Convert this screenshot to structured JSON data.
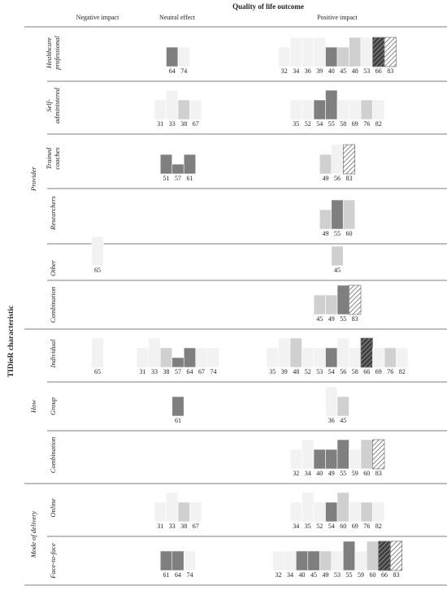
{
  "chart_data": {
    "type": "harvest",
    "title": "Quality of life outcome",
    "columns": [
      "Negative impact",
      "Neutral effect",
      "Positive impact"
    ],
    "axis_label": "TIDieR characteristic",
    "groups": [
      {
        "name": "Provider",
        "rows": [
          {
            "label": [
              "Healthcare",
              "professional"
            ],
            "negative": [],
            "neutral": [
              {
                "study": "64",
                "height": 2,
                "color": "#7f7f7f"
              },
              {
                "study": "74",
                "height": 2,
                "color": "#f2f2f2"
              }
            ],
            "positive": [
              {
                "study": "32",
                "height": 2,
                "color": "#f2f2f2"
              },
              {
                "study": "34",
                "height": 3,
                "color": "#f2f2f2"
              },
              {
                "study": "36",
                "height": 3,
                "color": "#f2f2f2"
              },
              {
                "study": "39",
                "height": 3,
                "color": "#f2f2f2"
              },
              {
                "study": "40",
                "height": 2,
                "color": "#7f7f7f"
              },
              {
                "study": "45",
                "height": 2,
                "color": "#d0d0d0"
              },
              {
                "study": "48",
                "height": 3,
                "color": "#d0d0d0"
              },
              {
                "study": "53",
                "height": 3,
                "color": "#f2f2f2"
              },
              {
                "study": "66",
                "height": 3,
                "color": "#404040",
                "hatched": true
              },
              {
                "study": "83",
                "height": 3,
                "color": "#ffffff",
                "hatched": true
              }
            ]
          },
          {
            "label": [
              "Self-",
              "administered"
            ],
            "negative": [],
            "neutral": [
              {
                "study": "31",
                "height": 2,
                "color": "#f2f2f2"
              },
              {
                "study": "33",
                "height": 3,
                "color": "#f2f2f2"
              },
              {
                "study": "38",
                "height": 2,
                "color": "#d0d0d0"
              },
              {
                "study": "67",
                "height": 2,
                "color": "#f2f2f2"
              }
            ],
            "positive": [
              {
                "study": "35",
                "height": 2,
                "color": "#f2f2f2"
              },
              {
                "study": "52",
                "height": 2,
                "color": "#f2f2f2"
              },
              {
                "study": "54",
                "height": 2,
                "color": "#7f7f7f"
              },
              {
                "study": "55",
                "height": 3,
                "color": "#7f7f7f"
              },
              {
                "study": "58",
                "height": 2,
                "color": "#f2f2f2"
              },
              {
                "study": "69",
                "height": 2,
                "color": "#f2f2f2"
              },
              {
                "study": "76",
                "height": 2,
                "color": "#d0d0d0"
              },
              {
                "study": "82",
                "height": 2,
                "color": "#f2f2f2"
              }
            ]
          },
          {
            "label": [
              "Trained",
              "coaches"
            ],
            "negative": [],
            "neutral": [
              {
                "study": "51",
                "height": 2,
                "color": "#7f7f7f"
              },
              {
                "study": "57",
                "height": 1,
                "color": "#7f7f7f"
              },
              {
                "study": "61",
                "height": 2,
                "color": "#7f7f7f"
              }
            ],
            "positive": [
              {
                "study": "49",
                "height": 2,
                "color": "#d0d0d0"
              },
              {
                "study": "56",
                "height": 3,
                "color": "#f2f2f2"
              },
              {
                "study": "83",
                "height": 3,
                "color": "#ffffff",
                "hatched": true
              }
            ]
          },
          {
            "label": [
              "Researchers"
            ],
            "negative": [],
            "neutral": [],
            "positive": [
              {
                "study": "49",
                "height": 2,
                "color": "#d0d0d0"
              },
              {
                "study": "55",
                "height": 3,
                "color": "#7f7f7f"
              },
              {
                "study": "60",
                "height": 3,
                "color": "#d0d0d0"
              }
            ]
          },
          {
            "label": [
              "Other"
            ],
            "label_color": "#aaaaaa",
            "negative": [
              {
                "study": "65",
                "height": 3,
                "color": "#f2f2f2"
              }
            ],
            "neutral": [],
            "positive": [
              {
                "study": "45",
                "height": 2,
                "color": "#d0d0d0"
              }
            ]
          },
          {
            "label": [
              "Combination"
            ],
            "negative": [],
            "neutral": [],
            "positive": [
              {
                "study": "45",
                "height": 2,
                "color": "#d0d0d0"
              },
              {
                "study": "49",
                "height": 2,
                "color": "#d0d0d0"
              },
              {
                "study": "55",
                "height": 3,
                "color": "#7f7f7f"
              },
              {
                "study": "83",
                "height": 3,
                "color": "#ffffff",
                "hatched": true
              }
            ]
          }
        ]
      },
      {
        "name": "How",
        "rows": [
          {
            "label": [
              "Individual"
            ],
            "negative": [
              {
                "study": "65",
                "height": 3,
                "color": "#f2f2f2"
              }
            ],
            "neutral": [
              {
                "study": "31",
                "height": 2,
                "color": "#f2f2f2"
              },
              {
                "study": "33",
                "height": 3,
                "color": "#f2f2f2"
              },
              {
                "study": "38",
                "height": 2,
                "color": "#d0d0d0"
              },
              {
                "study": "57",
                "height": 1,
                "color": "#7f7f7f"
              },
              {
                "study": "64",
                "height": 2,
                "color": "#7f7f7f"
              },
              {
                "study": "67",
                "height": 2,
                "color": "#f2f2f2"
              },
              {
                "study": "74",
                "height": 2,
                "color": "#f2f2f2"
              }
            ],
            "positive": [
              {
                "study": "35",
                "height": 2,
                "color": "#f2f2f2"
              },
              {
                "study": "39",
                "height": 3,
                "color": "#f2f2f2"
              },
              {
                "study": "48",
                "height": 3,
                "color": "#d0d0d0"
              },
              {
                "study": "52",
                "height": 2,
                "color": "#f2f2f2"
              },
              {
                "study": "53",
                "height": 2,
                "color": "#f2f2f2"
              },
              {
                "study": "54",
                "height": 2,
                "color": "#7f7f7f"
              },
              {
                "study": "56",
                "height": 3,
                "color": "#f2f2f2"
              },
              {
                "study": "58",
                "height": 2,
                "color": "#f2f2f2"
              },
              {
                "study": "66",
                "height": 3,
                "color": "#404040",
                "hatched": true
              },
              {
                "study": "69",
                "height": 2,
                "color": "#f2f2f2"
              },
              {
                "study": "76",
                "height": 2,
                "color": "#d0d0d0"
              },
              {
                "study": "82",
                "height": 2,
                "color": "#f2f2f2"
              }
            ]
          },
          {
            "label": [
              "Group"
            ],
            "negative": [],
            "neutral": [
              {
                "study": "61",
                "height": 2,
                "color": "#7f7f7f"
              }
            ],
            "positive": [
              {
                "study": "36",
                "height": 3,
                "color": "#f2f2f2"
              },
              {
                "study": "45",
                "height": 2,
                "color": "#d0d0d0"
              }
            ]
          },
          {
            "label": [
              "Combination"
            ],
            "negative": [],
            "neutral": [],
            "positive": [
              {
                "study": "32",
                "height": 2,
                "color": "#f2f2f2"
              },
              {
                "study": "34",
                "height": 3,
                "color": "#f2f2f2"
              },
              {
                "study": "40",
                "height": 2,
                "color": "#7f7f7f"
              },
              {
                "study": "49",
                "height": 2,
                "color": "#7f7f7f"
              },
              {
                "study": "55",
                "height": 3,
                "color": "#7f7f7f"
              },
              {
                "study": "59",
                "height": 2,
                "color": "#f2f2f2"
              },
              {
                "study": "60",
                "height": 3,
                "color": "#d0d0d0"
              },
              {
                "study": "83",
                "height": 3,
                "color": "#ffffff",
                "hatched": true
              }
            ]
          }
        ]
      },
      {
        "name": "Mode of delivery",
        "rows": [
          {
            "label": [
              "Online"
            ],
            "negative": [],
            "neutral": [
              {
                "study": "31",
                "height": 2,
                "color": "#f2f2f2"
              },
              {
                "study": "33",
                "height": 3,
                "color": "#f2f2f2"
              },
              {
                "study": "38",
                "height": 2,
                "color": "#d0d0d0"
              },
              {
                "study": "67",
                "height": 2,
                "color": "#f2f2f2"
              }
            ],
            "positive": [
              {
                "study": "34",
                "height": 2,
                "color": "#f2f2f2"
              },
              {
                "study": "35",
                "height": 3,
                "color": "#f2f2f2"
              },
              {
                "study": "52",
                "height": 2,
                "color": "#f2f2f2"
              },
              {
                "study": "54",
                "height": 2,
                "color": "#7f7f7f"
              },
              {
                "study": "60",
                "height": 3,
                "color": "#d0d0d0"
              },
              {
                "study": "69",
                "height": 2,
                "color": "#f2f2f2"
              },
              {
                "study": "76",
                "height": 2,
                "color": "#d0d0d0"
              },
              {
                "study": "82",
                "height": 2,
                "color": "#f2f2f2"
              }
            ]
          },
          {
            "label": [
              "Face-to-face"
            ],
            "negative": [],
            "neutral": [
              {
                "study": "61",
                "height": 2,
                "color": "#7f7f7f"
              },
              {
                "study": "64",
                "height": 2,
                "color": "#7f7f7f"
              },
              {
                "study": "74",
                "height": 2,
                "color": "#f2f2f2"
              }
            ],
            "positive": [
              {
                "study": "32",
                "height": 2,
                "color": "#f2f2f2"
              },
              {
                "study": "34",
                "height": 2,
                "color": "#f2f2f2"
              },
              {
                "study": "40",
                "height": 2,
                "color": "#7f7f7f"
              },
              {
                "study": "45",
                "height": 2,
                "color": "#7f7f7f"
              },
              {
                "study": "49",
                "height": 2,
                "color": "#d0d0d0"
              },
              {
                "study": "53",
                "height": 2,
                "color": "#f2f2f2"
              },
              {
                "study": "55",
                "height": 3,
                "color": "#7f7f7f"
              },
              {
                "study": "59",
                "height": 2,
                "color": "#f2f2f2"
              },
              {
                "study": "60",
                "height": 3,
                "color": "#d0d0d0"
              },
              {
                "study": "66",
                "height": 3,
                "color": "#404040",
                "hatched": true
              },
              {
                "study": "83",
                "height": 3,
                "color": "#ffffff",
                "hatched": true
              }
            ]
          }
        ]
      }
    ]
  }
}
